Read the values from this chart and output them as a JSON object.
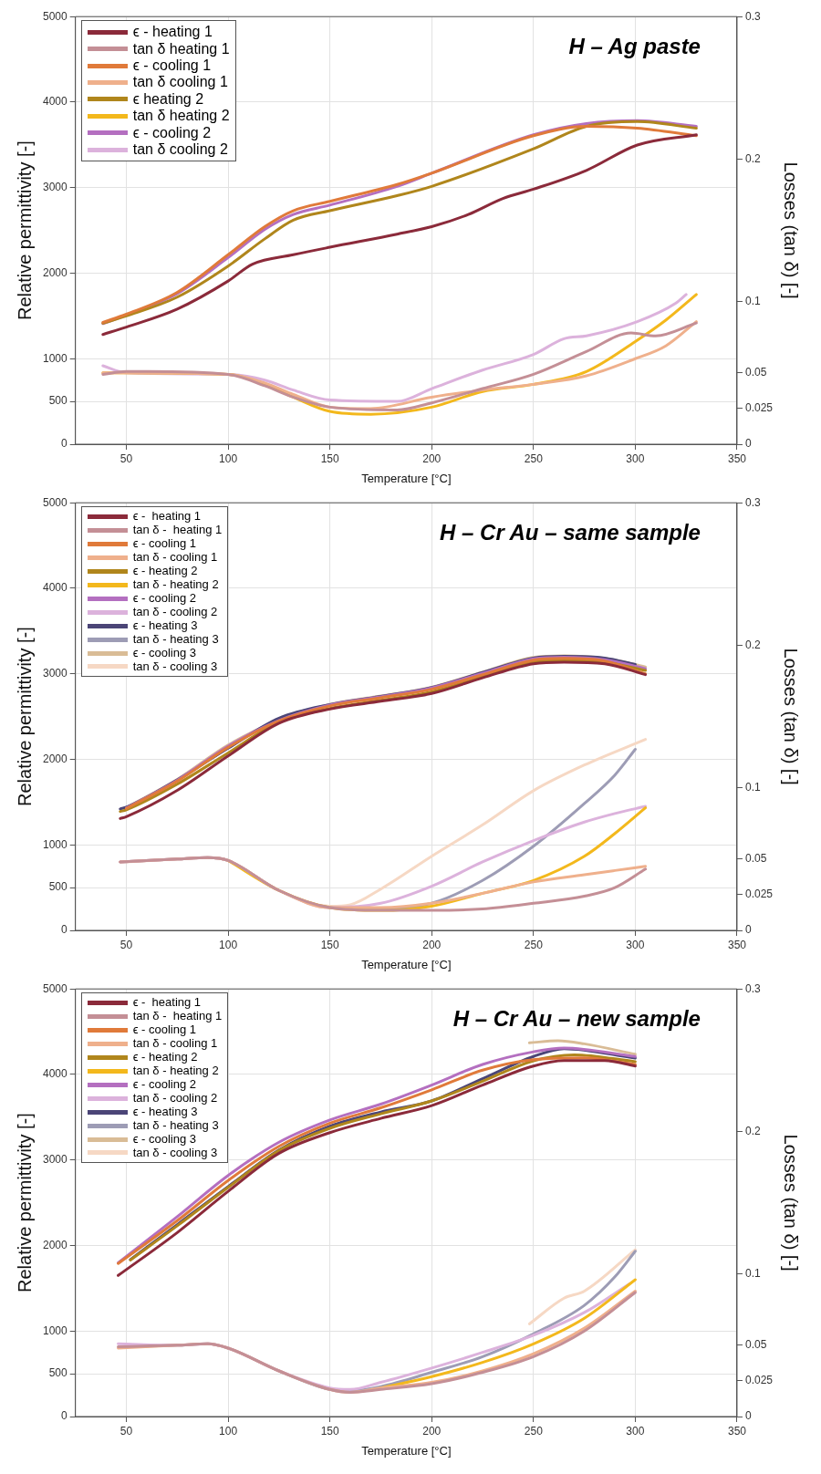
{
  "chart_data": [
    {
      "type": "line",
      "title": "H – Ag paste",
      "xlabel": "Temperature [°C]",
      "ylabel": "Relative permittivity [-]",
      "y2label": "Losses (tan δ) [-]",
      "xlim": [
        25,
        350
      ],
      "xticks": [
        50,
        100,
        150,
        200,
        250,
        300,
        350
      ],
      "ylim": [
        0,
        5000
      ],
      "yticks": [
        0,
        500,
        1000,
        2000,
        3000,
        4000,
        5000
      ],
      "y2lim": [
        0,
        0.3
      ],
      "y2ticks": [
        0,
        0.025,
        0.05,
        0.1,
        0.2,
        0.3
      ],
      "grid": true,
      "legend": "top left",
      "marker": "none",
      "line_style": "solid",
      "series": [
        {
          "name": "ϵ - heating 1",
          "color": "#8b2a3a",
          "x": [
            38.5,
            50,
            75,
            100,
            112,
            132,
            150,
            183,
            200,
            218,
            235,
            250,
            276,
            301,
            330
          ],
          "values": [
            1283,
            1370,
            1580,
            1908,
            2105,
            2215,
            2303,
            2456,
            2544,
            2686,
            2873,
            2982,
            3202,
            3498,
            3618
          ]
        },
        {
          "name": "tan δ heating 1",
          "color": "#c48f96",
          "axis": "y2",
          "x": [
            38.5,
            50,
            60,
            100,
            118,
            132,
            150,
            183,
            200,
            225,
            250,
            276,
            298,
            310,
            330
          ],
          "values": [
            0.049,
            0.051,
            0.051,
            0.049,
            0.041,
            0.033,
            0.026,
            0.024,
            0.029,
            0.039,
            0.049,
            0.065,
            0.078,
            0.076,
            0.085
          ]
        },
        {
          "name": "ϵ - cooling 1",
          "color": "#e07a3a",
          "x": [
            38.5,
            50,
            75,
            100,
            118,
            132,
            150,
            183,
            200,
            250,
            276,
            301,
            330
          ],
          "values": [
            1425,
            1520,
            1776,
            2215,
            2544,
            2730,
            2840,
            3037,
            3169,
            3607,
            3717,
            3695,
            3607
          ]
        },
        {
          "name": "tan δ cooling 1",
          "color": "#efb08c",
          "axis": "y2",
          "x": [
            38.5,
            50,
            100,
            118,
            132,
            150,
            170,
            200,
            225,
            250,
            276,
            300,
            315,
            330
          ],
          "values": [
            0.05,
            0.05,
            0.049,
            0.043,
            0.035,
            0.026,
            0.025,
            0.033,
            0.038,
            0.042,
            0.048,
            0.06,
            0.069,
            0.086
          ]
        },
        {
          "name": "ϵ heating 2",
          "color": "#b0861c",
          "x": [
            38.5,
            50,
            75,
            100,
            118,
            132,
            150,
            183,
            200,
            250,
            276,
            301,
            330
          ],
          "values": [
            1414,
            1500,
            1720,
            2083,
            2401,
            2620,
            2730,
            2906,
            3015,
            3454,
            3717,
            3772,
            3695
          ]
        },
        {
          "name": "tan δ heating 2",
          "color": "#f3b81c",
          "axis": "y2",
          "x": [
            38.5,
            50,
            100,
            118,
            132,
            150,
            170,
            200,
            225,
            250,
            276,
            300,
            315,
            330
          ],
          "values": [
            0.05,
            0.05,
            0.049,
            0.042,
            0.033,
            0.023,
            0.021,
            0.026,
            0.037,
            0.042,
            0.051,
            0.072,
            0.087,
            0.105
          ]
        },
        {
          "name": "ϵ - cooling 2",
          "color": "#b46fc0",
          "x": [
            38.5,
            50,
            75,
            100,
            118,
            132,
            150,
            183,
            200,
            250,
            276,
            301,
            330
          ],
          "values": [
            1410,
            1510,
            1760,
            2182,
            2511,
            2686,
            2796,
            3015,
            3169,
            3618,
            3750,
            3783,
            3717
          ]
        },
        {
          "name": "tan δ cooling 2",
          "color": "#dcb2dc",
          "axis": "y2",
          "x": [
            38.5,
            50,
            100,
            118,
            132,
            150,
            183,
            200,
            225,
            250,
            265,
            276,
            301,
            320,
            325
          ],
          "values": [
            0.055,
            0.05,
            0.049,
            0.045,
            0.038,
            0.031,
            0.03,
            0.039,
            0.052,
            0.063,
            0.074,
            0.076,
            0.086,
            0.099,
            0.105
          ]
        }
      ]
    },
    {
      "type": "line",
      "title": "H – Cr Au – same sample",
      "xlabel": "Temperature [°C]",
      "ylabel": "Relative permittivity [-]",
      "y2label": "Losses (tan δ) [-]",
      "xlim": [
        25,
        350
      ],
      "xticks": [
        50,
        100,
        150,
        200,
        250,
        300,
        350
      ],
      "ylim": [
        0,
        5000
      ],
      "yticks": [
        0,
        500,
        1000,
        2000,
        3000,
        4000,
        5000
      ],
      "y2lim": [
        0,
        0.3
      ],
      "y2ticks": [
        0,
        0.025,
        0.05,
        0.1,
        0.2,
        0.3
      ],
      "grid": true,
      "legend": "top left",
      "marker": "none",
      "line_style": "solid",
      "series": [
        {
          "name": "ϵ -  heating 1",
          "color": "#8b2a3a",
          "x": [
            47,
            50,
            75,
            100,
            125,
            150,
            175,
            200,
            225,
            250,
            265,
            285,
            305
          ],
          "values": [
            1308,
            1330,
            1637,
            2040,
            2423,
            2588,
            2679,
            2770,
            2953,
            3118,
            3136,
            3118,
            2990
          ]
        },
        {
          "name": "tan δ -  heating 1",
          "color": "#c48f96",
          "axis": "y2",
          "x": [
            47,
            75,
            90,
            100,
            125,
            150,
            175,
            200,
            225,
            250,
            275,
            290,
            305
          ],
          "values": [
            0.048,
            0.05,
            0.051,
            0.049,
            0.028,
            0.016,
            0.014,
            0.014,
            0.015,
            0.019,
            0.024,
            0.03,
            0.043
          ]
        },
        {
          "name": "ϵ - cooling 1",
          "color": "#e07a3a",
          "x": [
            50,
            75,
            100,
            125,
            150,
            175,
            200,
            225,
            250,
            265,
            285,
            305
          ],
          "values": [
            1425,
            1745,
            2140,
            2450,
            2625,
            2720,
            2820,
            2990,
            3160,
            3180,
            3150,
            3000
          ]
        },
        {
          "name": "tan δ - cooling 1",
          "color": "#efb08c",
          "axis": "y2",
          "x": [
            47,
            75,
            90,
            100,
            125,
            150,
            175,
            200,
            225,
            250,
            275,
            290,
            305
          ],
          "values": [
            0.048,
            0.05,
            0.051,
            0.049,
            0.028,
            0.016,
            0.016,
            0.019,
            0.026,
            0.034,
            0.039,
            0.042,
            0.045
          ]
        },
        {
          "name": "ϵ - heating 2",
          "color": "#b0861c",
          "x": [
            47,
            50,
            75,
            100,
            125,
            150,
            175,
            200,
            225,
            250,
            265,
            285,
            305
          ],
          "values": [
            1390,
            1410,
            1710,
            2075,
            2435,
            2595,
            2690,
            2790,
            2965,
            3140,
            3160,
            3135,
            3040
          ]
        },
        {
          "name": "tan δ - heating 2",
          "color": "#f3b81c",
          "axis": "y2",
          "x": [
            100,
            125,
            150,
            175,
            200,
            225,
            250,
            275,
            290,
            305
          ],
          "values": [
            0.049,
            0.028,
            0.016,
            0.014,
            0.017,
            0.026,
            0.035,
            0.052,
            0.068,
            0.086
          ]
        },
        {
          "name": "ϵ - cooling 2",
          "color": "#b46fc0",
          "x": [
            50,
            75,
            100,
            125,
            150,
            175,
            200,
            225,
            250,
            265,
            285,
            305
          ],
          "values": [
            1430,
            1755,
            2155,
            2455,
            2635,
            2730,
            2835,
            3005,
            3175,
            3195,
            3165,
            3060
          ]
        },
        {
          "name": "tan δ - cooling 2",
          "color": "#dcb2dc",
          "axis": "y2",
          "x": [
            47,
            75,
            90,
            100,
            125,
            150,
            175,
            200,
            225,
            250,
            275,
            290,
            305
          ],
          "values": [
            0.048,
            0.05,
            0.051,
            0.049,
            0.028,
            0.016,
            0.019,
            0.031,
            0.048,
            0.063,
            0.076,
            0.082,
            0.087
          ]
        },
        {
          "name": "ϵ - heating 3",
          "color": "#4b4577",
          "x": [
            47,
            50,
            75,
            100,
            125,
            150,
            175,
            200,
            225,
            250,
            265,
            285,
            300
          ],
          "values": [
            1420,
            1440,
            1760,
            2130,
            2480,
            2640,
            2735,
            2840,
            3015,
            3185,
            3205,
            3185,
            3110
          ]
        },
        {
          "name": "tan δ - heating 3",
          "color": "#9d9cb5",
          "axis": "y2",
          "x": [
            47,
            75,
            90,
            100,
            125,
            150,
            175,
            200,
            225,
            250,
            275,
            290,
            300
          ],
          "values": [
            0.048,
            0.05,
            0.051,
            0.049,
            0.028,
            0.016,
            0.015,
            0.019,
            0.035,
            0.059,
            0.089,
            0.109,
            0.127
          ]
        },
        {
          "name": "ϵ - cooling 3",
          "color": "#d9bc96",
          "x": [
            50,
            75,
            100,
            125,
            150,
            175,
            200,
            225,
            250,
            265,
            285,
            305
          ],
          "values": [
            1436,
            1765,
            2167,
            2460,
            2643,
            2740,
            2844,
            3020,
            3191,
            3209,
            3180,
            3081
          ]
        },
        {
          "name": "tan δ - cooling 3",
          "color": "#f6d8c4",
          "axis": "y2",
          "x": [
            50,
            75,
            90,
            100,
            125,
            150,
            160,
            175,
            200,
            225,
            250,
            275,
            305
          ],
          "values": [
            0.048,
            0.05,
            0.051,
            0.049,
            0.028,
            0.017,
            0.018,
            0.029,
            0.052,
            0.074,
            0.098,
            0.116,
            0.134
          ]
        }
      ]
    },
    {
      "type": "line",
      "title": "H – Cr Au – new sample",
      "xlabel": "Temperature [°C]",
      "ylabel": "Relative permittivity [-]",
      "y2label": "Losses (tan δ) [-]",
      "xlim": [
        25,
        350
      ],
      "xticks": [
        50,
        100,
        150,
        200,
        250,
        300,
        350
      ],
      "ylim": [
        0,
        5000
      ],
      "yticks": [
        0,
        500,
        1000,
        2000,
        3000,
        4000,
        5000
      ],
      "y2lim": [
        0,
        0.3
      ],
      "y2ticks": [
        0,
        0.025,
        0.05,
        0.1,
        0.2,
        0.3
      ],
      "grid": true,
      "legend": "top left",
      "marker": "none",
      "line_style": "solid",
      "series": [
        {
          "name": "ϵ -  heating 1",
          "color": "#8b2a3a",
          "x": [
            46,
            75,
            100,
            125,
            150,
            175,
            200,
            225,
            250,
            265,
            285,
            300
          ],
          "values": [
            1650,
            2151,
            2633,
            3078,
            3320,
            3486,
            3635,
            3876,
            4098,
            4162,
            4162,
            4098
          ]
        },
        {
          "name": "tan δ -  heating 1",
          "color": "#c48f96",
          "axis": "y2",
          "x": [
            46,
            75,
            90,
            100,
            125,
            150,
            160,
            175,
            200,
            225,
            250,
            275,
            300
          ],
          "values": [
            0.049,
            0.05,
            0.051,
            0.048,
            0.032,
            0.019,
            0.017,
            0.019,
            0.023,
            0.031,
            0.042,
            0.06,
            0.087
          ]
        },
        {
          "name": "ϵ - cooling 1",
          "color": "#e07a3a",
          "x": [
            46,
            75,
            100,
            125,
            150,
            175,
            200,
            225,
            250,
            275,
            300
          ],
          "values": [
            1790,
            2290,
            2760,
            3160,
            3430,
            3610,
            3820,
            4050,
            4173,
            4195,
            4117
          ]
        },
        {
          "name": "tan δ - cooling 1",
          "color": "#efb08c",
          "axis": "y2",
          "x": [
            46,
            75,
            90,
            100,
            125,
            150,
            160,
            175,
            200,
            225,
            250,
            275,
            300
          ],
          "values": [
            0.048,
            0.05,
            0.051,
            0.048,
            0.032,
            0.019,
            0.017,
            0.02,
            0.024,
            0.032,
            0.044,
            0.062,
            0.088
          ]
        },
        {
          "name": "ϵ - heating 2",
          "color": "#b0861c",
          "x": [
            52,
            75,
            100,
            125,
            150,
            175,
            200,
            225,
            250,
            270,
            300
          ],
          "values": [
            1830,
            2230,
            2680,
            3110,
            3370,
            3540,
            3690,
            3920,
            4160,
            4230,
            4150
          ]
        },
        {
          "name": "tan δ - heating 2",
          "color": "#f3b81c",
          "axis": "y2",
          "x": [
            175,
            200,
            225,
            250,
            275,
            300
          ],
          "values": [
            0.02,
            0.028,
            0.038,
            0.051,
            0.069,
            0.096
          ]
        },
        {
          "name": "ϵ - cooling 2",
          "color": "#b46fc0",
          "x": [
            46,
            75,
            100,
            125,
            150,
            175,
            200,
            225,
            250,
            265,
            300
          ],
          "values": [
            1799,
            2337,
            2819,
            3208,
            3468,
            3653,
            3876,
            4117,
            4265,
            4310,
            4210
          ]
        },
        {
          "name": "tan δ - cooling 2",
          "color": "#dcb2dc",
          "axis": "y2",
          "x": [
            46,
            75,
            90,
            100,
            125,
            150,
            160,
            175,
            200,
            225,
            250,
            275,
            297
          ],
          "values": [
            0.051,
            0.05,
            0.051,
            0.048,
            0.032,
            0.02,
            0.019,
            0.024,
            0.034,
            0.045,
            0.057,
            0.073,
            0.093
          ]
        },
        {
          "name": "ϵ - heating 3",
          "color": "#4b4577",
          "x": [
            52,
            75,
            100,
            125,
            150,
            175,
            200,
            225,
            250,
            265,
            300
          ],
          "values": [
            1836,
            2244,
            2689,
            3116,
            3394,
            3561,
            3690,
            3950,
            4210,
            4302,
            4191
          ]
        },
        {
          "name": "tan δ - heating 3",
          "color": "#9d9cb5",
          "axis": "y2",
          "x": [
            52,
            75,
            90,
            100,
            125,
            150,
            160,
            175,
            200,
            225,
            250,
            275,
            290,
            300
          ],
          "values": [
            0.049,
            0.05,
            0.051,
            0.048,
            0.032,
            0.019,
            0.018,
            0.021,
            0.031,
            0.042,
            0.058,
            0.078,
            0.098,
            0.116
          ]
        },
        {
          "name": "ϵ - cooling 3",
          "color": "#d9bc96",
          "x": [
            248,
            262,
            275,
            300
          ],
          "values": [
            4369,
            4395,
            4358,
            4236
          ]
        },
        {
          "name": "tan δ - cooling 3",
          "color": "#f6d8c4",
          "axis": "y2",
          "x": [
            248,
            265,
            275,
            300
          ],
          "values": [
            0.065,
            0.083,
            0.088,
            0.117
          ]
        }
      ]
    }
  ]
}
